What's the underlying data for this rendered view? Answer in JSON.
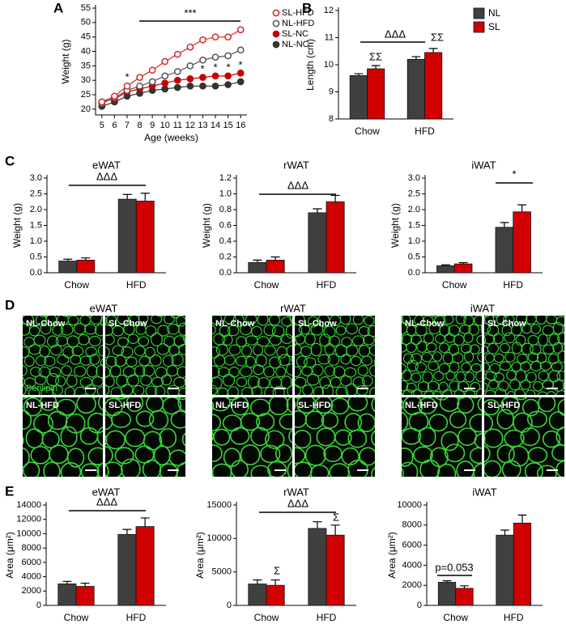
{
  "panel_labels": [
    "A",
    "B",
    "C",
    "D",
    "E"
  ],
  "chart_data": [
    {
      "type": "line",
      "x": [
        5,
        6,
        7,
        8,
        9,
        10,
        11,
        12,
        13,
        14,
        15,
        16
      ],
      "xlim": [
        4.5,
        16.5
      ],
      "xticks": [
        5,
        6,
        7,
        8,
        9,
        10,
        11,
        12,
        13,
        14,
        15,
        16
      ],
      "ylim": [
        18,
        55
      ],
      "yticks": [
        20,
        25,
        30,
        35,
        40,
        45,
        50,
        55
      ],
      "x_label": "Age (weeks)",
      "y_label": "Weight (g)",
      "series": [
        {
          "name": "SL-HFD",
          "color": "#d42a2a",
          "marker": "open",
          "values": [
            22.5,
            24.5,
            28,
            31,
            33.5,
            36.5,
            39,
            41.5,
            44,
            45,
            45,
            47.5
          ]
        },
        {
          "name": "NL-HFD",
          "color": "#555555",
          "marker": "open",
          "values": [
            22,
            24,
            26.5,
            28,
            29.5,
            31.5,
            33,
            35,
            37,
            38,
            38.5,
            40.5
          ]
        },
        {
          "name": "SL-NC",
          "color": "#c80000",
          "marker": "filled",
          "values": [
            22.5,
            23.5,
            26,
            27,
            28,
            29,
            30,
            30.5,
            31,
            31.5,
            31.5,
            32.5
          ]
        },
        {
          "name": "NL-NC",
          "color": "#333333",
          "marker": "filled",
          "values": [
            21,
            22.5,
            24.5,
            25.5,
            26.5,
            27,
            27.5,
            28,
            28,
            28,
            28.5,
            29.5
          ]
        }
      ],
      "annotations": [
        "***",
        "*",
        "*",
        "*",
        "*",
        "*"
      ]
    },
    {
      "type": "bar",
      "categories": [
        "Chow",
        "HFD"
      ],
      "ylim": [
        8,
        12
      ],
      "yticks": [
        8,
        9,
        10,
        11,
        12
      ],
      "y_label": "Length (cm)",
      "legend": true,
      "series": [
        {
          "name": "NL",
          "color": "#404040",
          "values": [
            9.6,
            10.2
          ],
          "errors": [
            0.07,
            0.1
          ]
        },
        {
          "name": "SL",
          "color": "#d10000",
          "values": [
            9.85,
            10.45
          ],
          "errors": [
            0.12,
            0.15
          ]
        }
      ],
      "annotations": [
        "ΔΔΔ",
        "ΣΣ",
        "ΣΣ"
      ]
    },
    {
      "type": "bar",
      "title": "eWAT",
      "categories": [
        "Chow",
        "HFD"
      ],
      "ylim": [
        0,
        3
      ],
      "yticks": [
        {
          "value": 0,
          "label": "0.0"
        },
        0.5,
        {
          "value": 1,
          "label": "1.0"
        },
        1.5,
        {
          "value": 2,
          "label": "2.0"
        },
        2.5,
        {
          "value": 3,
          "label": "3.0"
        }
      ],
      "y_label": "Weight (g)",
      "series": [
        {
          "color": "#404040",
          "values": [
            0.37,
            2.33
          ],
          "errors": [
            0.06,
            0.15
          ]
        },
        {
          "color": "#d10000",
          "values": [
            0.4,
            2.27
          ],
          "errors": [
            0.07,
            0.25
          ]
        }
      ],
      "annotations": [
        "ΔΔΔ"
      ]
    },
    {
      "type": "bar",
      "title": "rWAT",
      "categories": [
        "Chow",
        "HFD"
      ],
      "ylim": [
        0,
        1.2
      ],
      "yticks": [
        {
          "value": 0,
          "label": "0.0"
        },
        0.2,
        0.4,
        0.6,
        0.8,
        {
          "value": 1,
          "label": "1.0"
        },
        1.2
      ],
      "y_label": "Weight (g)",
      "series": [
        {
          "color": "#404040",
          "values": [
            0.13,
            0.76
          ],
          "errors": [
            0.03,
            0.05
          ]
        },
        {
          "color": "#d10000",
          "values": [
            0.16,
            0.9
          ],
          "errors": [
            0.04,
            0.08
          ]
        }
      ],
      "annotations": [
        "ΔΔΔ"
      ]
    },
    {
      "type": "bar",
      "title": "iWAT",
      "categories": [
        "Chow",
        "HFD"
      ],
      "ylim": [
        0,
        3
      ],
      "yticks": [
        {
          "value": 0,
          "label": "0.0"
        },
        0.5,
        {
          "value": 1,
          "label": "1.0"
        },
        1.5,
        {
          "value": 2,
          "label": "2.0"
        },
        2.5,
        {
          "value": 3,
          "label": "3.0"
        }
      ],
      "y_label": "Weight (g)",
      "series": [
        {
          "color": "#404040",
          "values": [
            0.22,
            1.44
          ],
          "errors": [
            0.03,
            0.15
          ]
        },
        {
          "color": "#d10000",
          "values": [
            0.28,
            1.93
          ],
          "errors": [
            0.04,
            0.22
          ]
        }
      ],
      "annotations": [
        "*"
      ]
    },
    {
      "type": "bar",
      "title": "eWAT",
      "categories": [
        "Chow",
        "HFD"
      ],
      "ylim": [
        0,
        14000
      ],
      "yticks": [
        0,
        2000,
        4000,
        6000,
        8000,
        10000,
        12000,
        14000
      ],
      "y_label": "Area (μm²)",
      "series": [
        {
          "color": "#404040",
          "values": [
            3000,
            9900
          ],
          "errors": [
            350,
            700
          ]
        },
        {
          "color": "#d10000",
          "values": [
            2650,
            11000
          ],
          "errors": [
            450,
            1200
          ]
        }
      ],
      "annotations": [
        "ΔΔΔ"
      ]
    },
    {
      "type": "bar",
      "title": "rWAT",
      "categories": [
        "Chow",
        "HFD"
      ],
      "ylim": [
        0,
        15000
      ],
      "yticks": [
        0,
        5000,
        10000,
        15000
      ],
      "y_label": "Area (μm²)",
      "series": [
        {
          "color": "#404040",
          "values": [
            3200,
            11500
          ],
          "errors": [
            600,
            1000
          ]
        },
        {
          "color": "#d10000",
          "values": [
            3000,
            10500
          ],
          "errors": [
            800,
            1500
          ]
        }
      ],
      "annotations": [
        "ΔΔΔ",
        "Σ",
        "Σ"
      ]
    },
    {
      "type": "bar",
      "title": "iWAT",
      "categories": [
        "Chow",
        "HFD"
      ],
      "ylim": [
        0,
        10000
      ],
      "yticks": [
        0,
        2000,
        4000,
        6000,
        8000,
        10000
      ],
      "y_label": "Area (μm²)",
      "series": [
        {
          "color": "#404040",
          "values": [
            2300,
            7000
          ],
          "errors": [
            150,
            500
          ]
        },
        {
          "color": "#d10000",
          "values": [
            1700,
            8200
          ],
          "errors": [
            250,
            800
          ]
        }
      ],
      "annotations": [
        "p=0.053"
      ]
    }
  ],
  "micrographs": {
    "stain_label": "Perilipin",
    "groups": [
      {
        "title": "eWAT",
        "panels": [
          "NL-Chow",
          "SL-Chow",
          "NL-HFD",
          "SL-HFD"
        ]
      },
      {
        "title": "rWAT",
        "panels": [
          "NL-Chow",
          "SL-Chow",
          "NL-HFD",
          "SL-HFD"
        ]
      },
      {
        "title": "iWAT",
        "panels": [
          "NL-Chow",
          "SL-Chow",
          "NL-HFD",
          "SL-HFD"
        ]
      }
    ]
  }
}
